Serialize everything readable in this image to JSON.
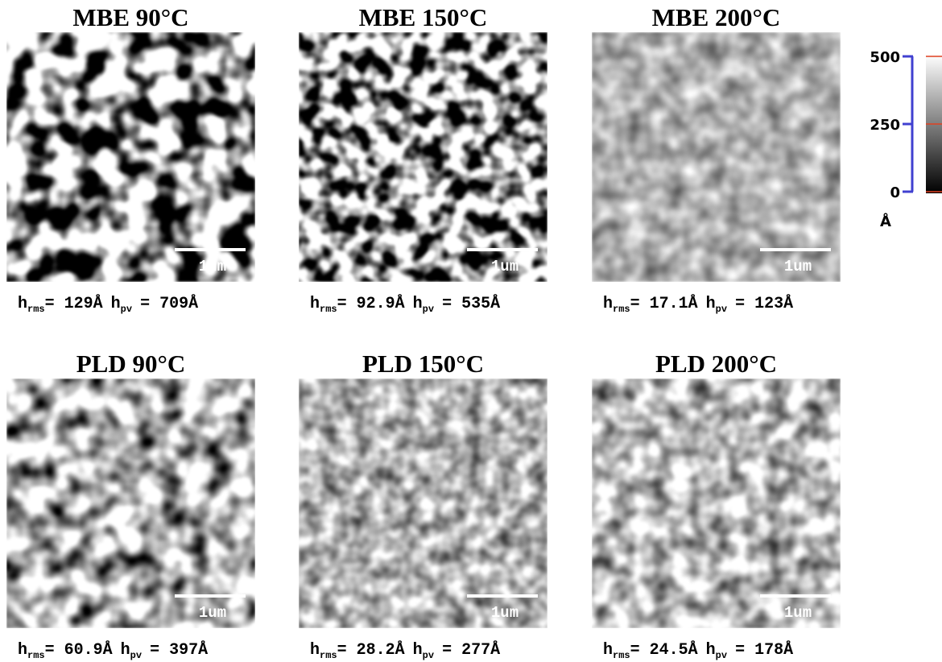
{
  "panels": [
    {
      "title": "MBE 90°C",
      "scale_bar": "1um",
      "caption": {
        "rms_symbol": "h",
        "rms_sub": "rms",
        "rms_value": "= 129Å",
        "pv_symbol": "h",
        "pv_sub": "pv",
        "pv_value": "= 709Å"
      }
    },
    {
      "title": "MBE 150°C",
      "scale_bar": "1um",
      "caption": {
        "rms_symbol": "h",
        "rms_sub": "rms",
        "rms_value": "= 92.9Å",
        "pv_symbol": "h",
        "pv_sub": "pv",
        "pv_value": "= 535Å"
      }
    },
    {
      "title": "MBE 200°C",
      "scale_bar": "1um",
      "caption": {
        "rms_symbol": "h",
        "rms_sub": "rms",
        "rms_value": "= 17.1Å",
        "pv_symbol": "h",
        "pv_sub": "pv",
        "pv_value": "= 123Å"
      }
    },
    {
      "title": "PLD 90°C",
      "scale_bar": "1um",
      "caption": {
        "rms_symbol": "h",
        "rms_sub": "rms",
        "rms_value": "= 60.9Å",
        "pv_symbol": "h",
        "pv_sub": "pv",
        "pv_value": "= 397Å"
      }
    },
    {
      "title": "PLD 150°C",
      "scale_bar": "1um",
      "caption": {
        "rms_symbol": "h",
        "rms_sub": "rms",
        "rms_value": "= 28.2Å",
        "pv_symbol": "h",
        "pv_sub": "pv",
        "pv_value": "= 277Å"
      }
    },
    {
      "title": "PLD 200°C",
      "scale_bar": "1um",
      "caption": {
        "rms_symbol": "h",
        "rms_sub": "rms",
        "rms_value": "= 24.5Å",
        "pv_symbol": "h",
        "pv_sub": "pv",
        "pv_value": "= 178Å"
      }
    }
  ],
  "colorbar": {
    "range": [
      0,
      500
    ],
    "ticks": [
      500,
      250,
      0
    ],
    "unit": "Å"
  }
}
